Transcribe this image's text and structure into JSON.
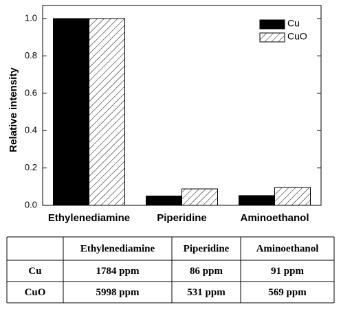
{
  "chart_data": {
    "type": "bar",
    "y_label": "Relative intensity",
    "categories": [
      "Ethylenediamine",
      "Piperidine",
      "Aminoethanol"
    ],
    "series": [
      {
        "name": "Cu",
        "color": "#000000",
        "pattern": "solid",
        "values": [
          1.0,
          0.05,
          0.052
        ]
      },
      {
        "name": "CuO",
        "color": "#000000",
        "pattern": "hatch",
        "values": [
          1.0,
          0.088,
          0.095
        ]
      }
    ],
    "ylim": [
      0,
      1.07
    ],
    "yticks": [
      {
        "value": 0,
        "label": "0.0"
      },
      0.2,
      0.4,
      0.6,
      0.8,
      {
        "value": 1,
        "label": "1.0"
      }
    ],
    "legend": "upper-right",
    "grid": false
  },
  "table": {
    "columns": [
      "Ethylenediamine",
      "Piperidine",
      "Aminoethanol"
    ],
    "rows": [
      {
        "label": "Cu",
        "cells": [
          "1784 ppm",
          "86 ppm",
          "91 ppm"
        ]
      },
      {
        "label": "CuO",
        "cells": [
          "5998 ppm",
          "531 ppm",
          "569 ppm"
        ]
      }
    ]
  }
}
